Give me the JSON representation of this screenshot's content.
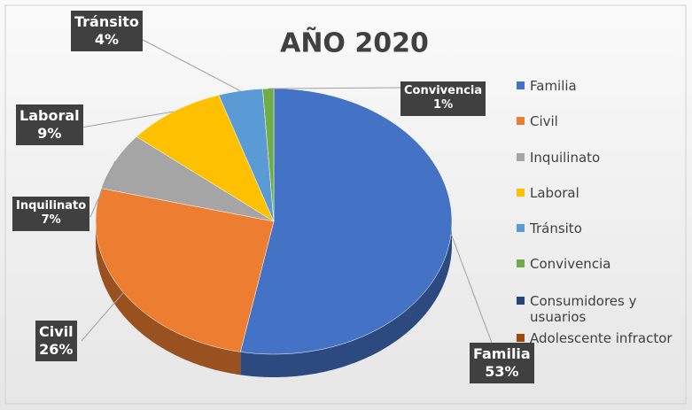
{
  "chart_data": {
    "type": "pie",
    "title": "AÑO 2020",
    "categories": [
      "Familia",
      "Civil",
      "Inquilinato",
      "Laboral",
      "Tránsito",
      "Convivencia",
      "Consumidores y usuarios",
      "Adolescente infractor"
    ],
    "values": [
      53,
      26,
      7,
      9,
      4,
      1,
      0,
      0
    ],
    "value_labels": [
      "53%",
      "26%",
      "7%",
      "9%",
      "4%",
      "1%",
      null,
      null
    ],
    "colors": [
      "#4472c4",
      "#ed7d31",
      "#a5a5a5",
      "#ffc000",
      "#5b9bd5",
      "#70ad47",
      "#264478",
      "#9e480e"
    ],
    "legend": "right"
  }
}
